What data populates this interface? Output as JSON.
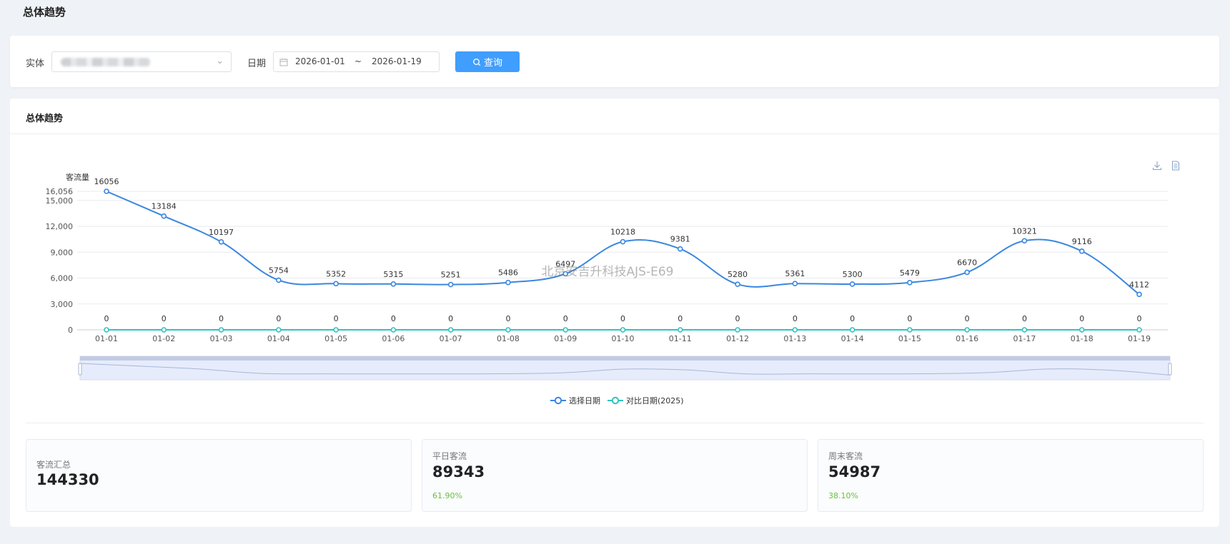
{
  "page": {
    "title": "总体趋势"
  },
  "filters": {
    "entity_label": "实体",
    "date_label": "日期",
    "date_start": "2026-01-01",
    "date_separator": "~",
    "date_end": "2026-01-19",
    "query_button": "查询"
  },
  "card": {
    "title": "总体趋势"
  },
  "colors": {
    "primary": "#409eff",
    "series_selected": "#3a87e0",
    "series_compare": "#2ec4be",
    "positive": "#67c23a"
  },
  "chart_data": {
    "type": "line",
    "ylabel": "客流量",
    "ylim": [
      0,
      16056
    ],
    "y_ticks": [
      0,
      3000,
      6000,
      9000,
      12000,
      15000,
      16056
    ],
    "y_tick_labels": [
      "0",
      "3,000",
      "6,000",
      "9,000",
      "12,000",
      "15,000",
      "16,056"
    ],
    "categories": [
      "01-01",
      "01-02",
      "01-03",
      "01-04",
      "01-05",
      "01-06",
      "01-07",
      "01-08",
      "01-09",
      "01-10",
      "01-11",
      "01-12",
      "01-13",
      "01-14",
      "01-15",
      "01-16",
      "01-17",
      "01-18",
      "01-19"
    ],
    "series": [
      {
        "name": "选择日期",
        "color": "#3a87e0",
        "values": [
          16056,
          13184,
          10197,
          5754,
          5352,
          5315,
          5251,
          5486,
          6497,
          10218,
          9381,
          5280,
          5361,
          5300,
          5479,
          6670,
          10321,
          9116,
          4112
        ]
      },
      {
        "name": "对比日期(2025)",
        "color": "#2ec4be",
        "values": [
          0,
          0,
          0,
          0,
          0,
          0,
          0,
          0,
          0,
          0,
          0,
          0,
          0,
          0,
          0,
          0,
          0,
          0,
          0
        ]
      }
    ],
    "watermark": "北京安吉升科技AJS-E69",
    "legend_position": "bottom-center",
    "grid": true
  },
  "stats": [
    {
      "label": "客流汇总",
      "value": "144330",
      "pct": ""
    },
    {
      "label": "平日客流",
      "value": "89343",
      "pct": "61.90%"
    },
    {
      "label": "周末客流",
      "value": "54987",
      "pct": "38.10%"
    }
  ]
}
